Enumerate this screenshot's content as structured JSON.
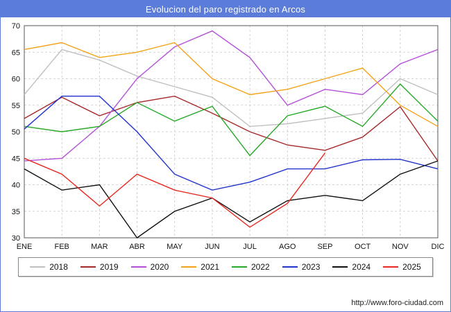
{
  "header": {
    "title": "Evolucion del paro registrado en Arcos"
  },
  "footer": {
    "url": "http://www.foro-ciudad.com"
  },
  "colors": {
    "frame": "#5b7cd8",
    "titlebar": "#5b7cd8",
    "grid": "#c8c8c8",
    "axis": "#555555",
    "tick_text": "#111111"
  },
  "chart_data": {
    "type": "line",
    "title": "Evolucion del paro registrado en Arcos",
    "categories": [
      "ENE",
      "FEB",
      "MAR",
      "ABR",
      "MAY",
      "JUN",
      "JUL",
      "AGO",
      "SEP",
      "OCT",
      "NOV",
      "DIC"
    ],
    "ylim": [
      30,
      70
    ],
    "ytick_step": 5,
    "grid": true,
    "legend_position": "bottom",
    "series": [
      {
        "name": "2018",
        "color": "#c0c0c0",
        "values": [
          57,
          65.5,
          63.5,
          60.5,
          58.5,
          56.5,
          51,
          51.5,
          52.5,
          53.5,
          60,
          57
        ]
      },
      {
        "name": "2019",
        "color": "#a52828",
        "values": [
          52.5,
          56.5,
          53,
          55.5,
          56.7,
          53.5,
          50,
          47.5,
          46.5,
          49,
          54.7,
          44.5
        ]
      },
      {
        "name": "2020",
        "color": "#b44fd8",
        "values": [
          44.5,
          45,
          51,
          60,
          66,
          69,
          64,
          55,
          58,
          57,
          62.8,
          65.5
        ]
      },
      {
        "name": "2021",
        "color": "#f4a318",
        "values": [
          65.5,
          66.8,
          64,
          65,
          66.8,
          60,
          57,
          58,
          60,
          62,
          55,
          51
        ]
      },
      {
        "name": "2022",
        "color": "#28a828",
        "values": [
          51,
          50,
          51,
          55.5,
          52,
          54.8,
          45.5,
          53,
          54.8,
          51,
          59,
          52
        ]
      },
      {
        "name": "2023",
        "color": "#2233cc",
        "values": [
          50.5,
          56.7,
          56.7,
          50,
          42,
          39,
          40.5,
          43,
          43,
          44.7,
          44.8,
          43
        ]
      },
      {
        "name": "2024",
        "color": "#101010",
        "values": [
          43,
          39,
          40,
          30,
          35,
          37.5,
          33,
          37,
          38,
          37,
          42,
          44.5
        ]
      },
      {
        "name": "2025",
        "color": "#e6281e",
        "values": [
          45,
          42,
          36,
          42,
          39,
          37.5,
          32,
          36.5,
          46,
          null,
          null,
          null
        ]
      }
    ]
  }
}
